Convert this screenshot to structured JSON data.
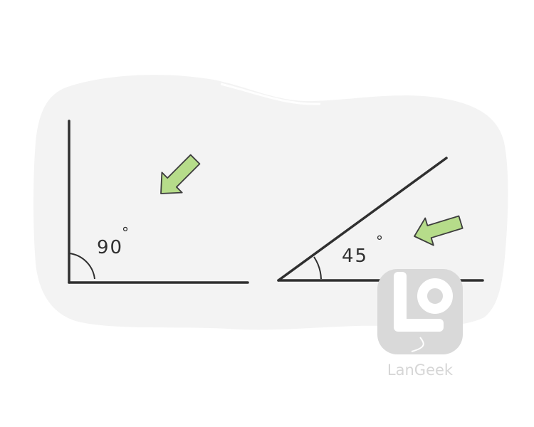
{
  "diagram": {
    "right_angle": {
      "value_label": "90",
      "degree_symbol": "°"
    },
    "acute_angle": {
      "value_label": "45",
      "degree_symbol": "°"
    }
  },
  "watermark": {
    "brand": "LanGeek"
  },
  "colors": {
    "background_blob": "#f3f3f3",
    "line": "#2f2f2f",
    "arrow_fill": "#b6dc8a",
    "arrow_stroke": "#3d3d3d",
    "watermark": "#d6d6d6"
  }
}
